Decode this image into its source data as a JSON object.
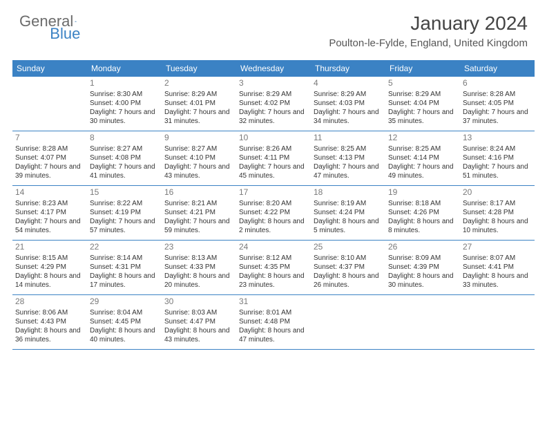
{
  "logo": {
    "text1": "General",
    "text2": "Blue"
  },
  "title": "January 2024",
  "location": "Poulton-le-Fylde, England, United Kingdom",
  "colors": {
    "header_bg": "#3b82c4",
    "header_text": "#ffffff",
    "border": "#3b82c4",
    "day_number": "#7a7a7a",
    "body_text": "#333333",
    "logo_gray": "#6b6b6b",
    "logo_blue": "#3b82c4"
  },
  "day_headers": [
    "Sunday",
    "Monday",
    "Tuesday",
    "Wednesday",
    "Thursday",
    "Friday",
    "Saturday"
  ],
  "weeks": [
    [
      {
        "num": "",
        "sunrise": "",
        "sunset": "",
        "daylight": ""
      },
      {
        "num": "1",
        "sunrise": "Sunrise: 8:30 AM",
        "sunset": "Sunset: 4:00 PM",
        "daylight": "Daylight: 7 hours and 30 minutes."
      },
      {
        "num": "2",
        "sunrise": "Sunrise: 8:29 AM",
        "sunset": "Sunset: 4:01 PM",
        "daylight": "Daylight: 7 hours and 31 minutes."
      },
      {
        "num": "3",
        "sunrise": "Sunrise: 8:29 AM",
        "sunset": "Sunset: 4:02 PM",
        "daylight": "Daylight: 7 hours and 32 minutes."
      },
      {
        "num": "4",
        "sunrise": "Sunrise: 8:29 AM",
        "sunset": "Sunset: 4:03 PM",
        "daylight": "Daylight: 7 hours and 34 minutes."
      },
      {
        "num": "5",
        "sunrise": "Sunrise: 8:29 AM",
        "sunset": "Sunset: 4:04 PM",
        "daylight": "Daylight: 7 hours and 35 minutes."
      },
      {
        "num": "6",
        "sunrise": "Sunrise: 8:28 AM",
        "sunset": "Sunset: 4:05 PM",
        "daylight": "Daylight: 7 hours and 37 minutes."
      }
    ],
    [
      {
        "num": "7",
        "sunrise": "Sunrise: 8:28 AM",
        "sunset": "Sunset: 4:07 PM",
        "daylight": "Daylight: 7 hours and 39 minutes."
      },
      {
        "num": "8",
        "sunrise": "Sunrise: 8:27 AM",
        "sunset": "Sunset: 4:08 PM",
        "daylight": "Daylight: 7 hours and 41 minutes."
      },
      {
        "num": "9",
        "sunrise": "Sunrise: 8:27 AM",
        "sunset": "Sunset: 4:10 PM",
        "daylight": "Daylight: 7 hours and 43 minutes."
      },
      {
        "num": "10",
        "sunrise": "Sunrise: 8:26 AM",
        "sunset": "Sunset: 4:11 PM",
        "daylight": "Daylight: 7 hours and 45 minutes."
      },
      {
        "num": "11",
        "sunrise": "Sunrise: 8:25 AM",
        "sunset": "Sunset: 4:13 PM",
        "daylight": "Daylight: 7 hours and 47 minutes."
      },
      {
        "num": "12",
        "sunrise": "Sunrise: 8:25 AM",
        "sunset": "Sunset: 4:14 PM",
        "daylight": "Daylight: 7 hours and 49 minutes."
      },
      {
        "num": "13",
        "sunrise": "Sunrise: 8:24 AM",
        "sunset": "Sunset: 4:16 PM",
        "daylight": "Daylight: 7 hours and 51 minutes."
      }
    ],
    [
      {
        "num": "14",
        "sunrise": "Sunrise: 8:23 AM",
        "sunset": "Sunset: 4:17 PM",
        "daylight": "Daylight: 7 hours and 54 minutes."
      },
      {
        "num": "15",
        "sunrise": "Sunrise: 8:22 AM",
        "sunset": "Sunset: 4:19 PM",
        "daylight": "Daylight: 7 hours and 57 minutes."
      },
      {
        "num": "16",
        "sunrise": "Sunrise: 8:21 AM",
        "sunset": "Sunset: 4:21 PM",
        "daylight": "Daylight: 7 hours and 59 minutes."
      },
      {
        "num": "17",
        "sunrise": "Sunrise: 8:20 AM",
        "sunset": "Sunset: 4:22 PM",
        "daylight": "Daylight: 8 hours and 2 minutes."
      },
      {
        "num": "18",
        "sunrise": "Sunrise: 8:19 AM",
        "sunset": "Sunset: 4:24 PM",
        "daylight": "Daylight: 8 hours and 5 minutes."
      },
      {
        "num": "19",
        "sunrise": "Sunrise: 8:18 AM",
        "sunset": "Sunset: 4:26 PM",
        "daylight": "Daylight: 8 hours and 8 minutes."
      },
      {
        "num": "20",
        "sunrise": "Sunrise: 8:17 AM",
        "sunset": "Sunset: 4:28 PM",
        "daylight": "Daylight: 8 hours and 10 minutes."
      }
    ],
    [
      {
        "num": "21",
        "sunrise": "Sunrise: 8:15 AM",
        "sunset": "Sunset: 4:29 PM",
        "daylight": "Daylight: 8 hours and 14 minutes."
      },
      {
        "num": "22",
        "sunrise": "Sunrise: 8:14 AM",
        "sunset": "Sunset: 4:31 PM",
        "daylight": "Daylight: 8 hours and 17 minutes."
      },
      {
        "num": "23",
        "sunrise": "Sunrise: 8:13 AM",
        "sunset": "Sunset: 4:33 PM",
        "daylight": "Daylight: 8 hours and 20 minutes."
      },
      {
        "num": "24",
        "sunrise": "Sunrise: 8:12 AM",
        "sunset": "Sunset: 4:35 PM",
        "daylight": "Daylight: 8 hours and 23 minutes."
      },
      {
        "num": "25",
        "sunrise": "Sunrise: 8:10 AM",
        "sunset": "Sunset: 4:37 PM",
        "daylight": "Daylight: 8 hours and 26 minutes."
      },
      {
        "num": "26",
        "sunrise": "Sunrise: 8:09 AM",
        "sunset": "Sunset: 4:39 PM",
        "daylight": "Daylight: 8 hours and 30 minutes."
      },
      {
        "num": "27",
        "sunrise": "Sunrise: 8:07 AM",
        "sunset": "Sunset: 4:41 PM",
        "daylight": "Daylight: 8 hours and 33 minutes."
      }
    ],
    [
      {
        "num": "28",
        "sunrise": "Sunrise: 8:06 AM",
        "sunset": "Sunset: 4:43 PM",
        "daylight": "Daylight: 8 hours and 36 minutes."
      },
      {
        "num": "29",
        "sunrise": "Sunrise: 8:04 AM",
        "sunset": "Sunset: 4:45 PM",
        "daylight": "Daylight: 8 hours and 40 minutes."
      },
      {
        "num": "30",
        "sunrise": "Sunrise: 8:03 AM",
        "sunset": "Sunset: 4:47 PM",
        "daylight": "Daylight: 8 hours and 43 minutes."
      },
      {
        "num": "31",
        "sunrise": "Sunrise: 8:01 AM",
        "sunset": "Sunset: 4:48 PM",
        "daylight": "Daylight: 8 hours and 47 minutes."
      },
      {
        "num": "",
        "sunrise": "",
        "sunset": "",
        "daylight": ""
      },
      {
        "num": "",
        "sunrise": "",
        "sunset": "",
        "daylight": ""
      },
      {
        "num": "",
        "sunrise": "",
        "sunset": "",
        "daylight": ""
      }
    ]
  ]
}
